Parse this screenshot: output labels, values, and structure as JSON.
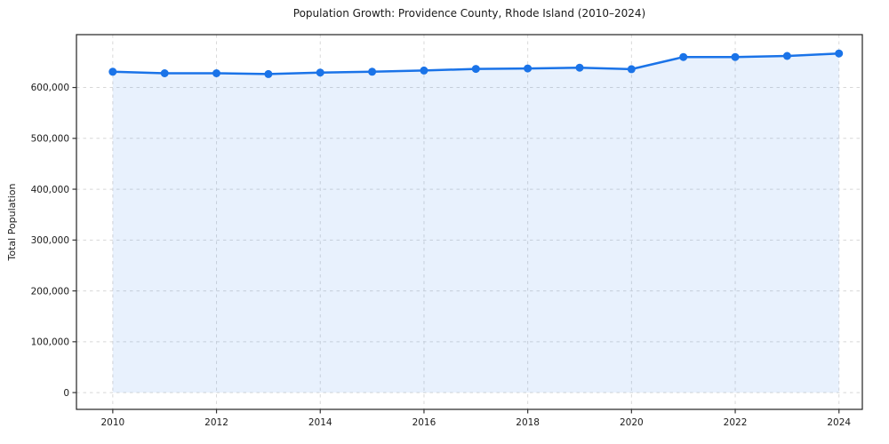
{
  "chart_data": {
    "type": "area",
    "title": "Population Growth: Providence County, Rhode Island (2010–2024)",
    "xlabel": "",
    "ylabel": "Total Population",
    "x": [
      2010,
      2011,
      2012,
      2013,
      2014,
      2015,
      2016,
      2017,
      2018,
      2019,
      2020,
      2021,
      2022,
      2023,
      2024
    ],
    "values": [
      631000,
      628000,
      628000,
      626500,
      629500,
      631000,
      633500,
      636500,
      637500,
      639000,
      636000,
      660000,
      660000,
      662000,
      667000
    ],
    "series_name": "Total Population",
    "xticks": [
      2010,
      2012,
      2014,
      2016,
      2018,
      2020,
      2022,
      2024
    ],
    "xtick_labels": [
      "2010",
      "2012",
      "2014",
      "2016",
      "2018",
      "2020",
      "2022",
      "2024"
    ],
    "yticks": [
      0,
      100000,
      200000,
      300000,
      400000,
      500000,
      600000
    ],
    "ytick_labels": [
      "0",
      "100,000",
      "200,000",
      "300,000",
      "400,000",
      "500,000",
      "600,000"
    ],
    "xlim": [
      2009.3,
      2024.45
    ],
    "ylim": [
      -33000,
      704000
    ],
    "grid": true,
    "legend": null,
    "colors": {
      "line": "#1a73e8",
      "marker": "#1a73e8",
      "fill": "#1a73e8",
      "fill_opacity": "0.10",
      "grid": "#d8d8d8",
      "spine": "#222222",
      "tick": "#333333",
      "tick_label": "#1a1a1a"
    }
  }
}
